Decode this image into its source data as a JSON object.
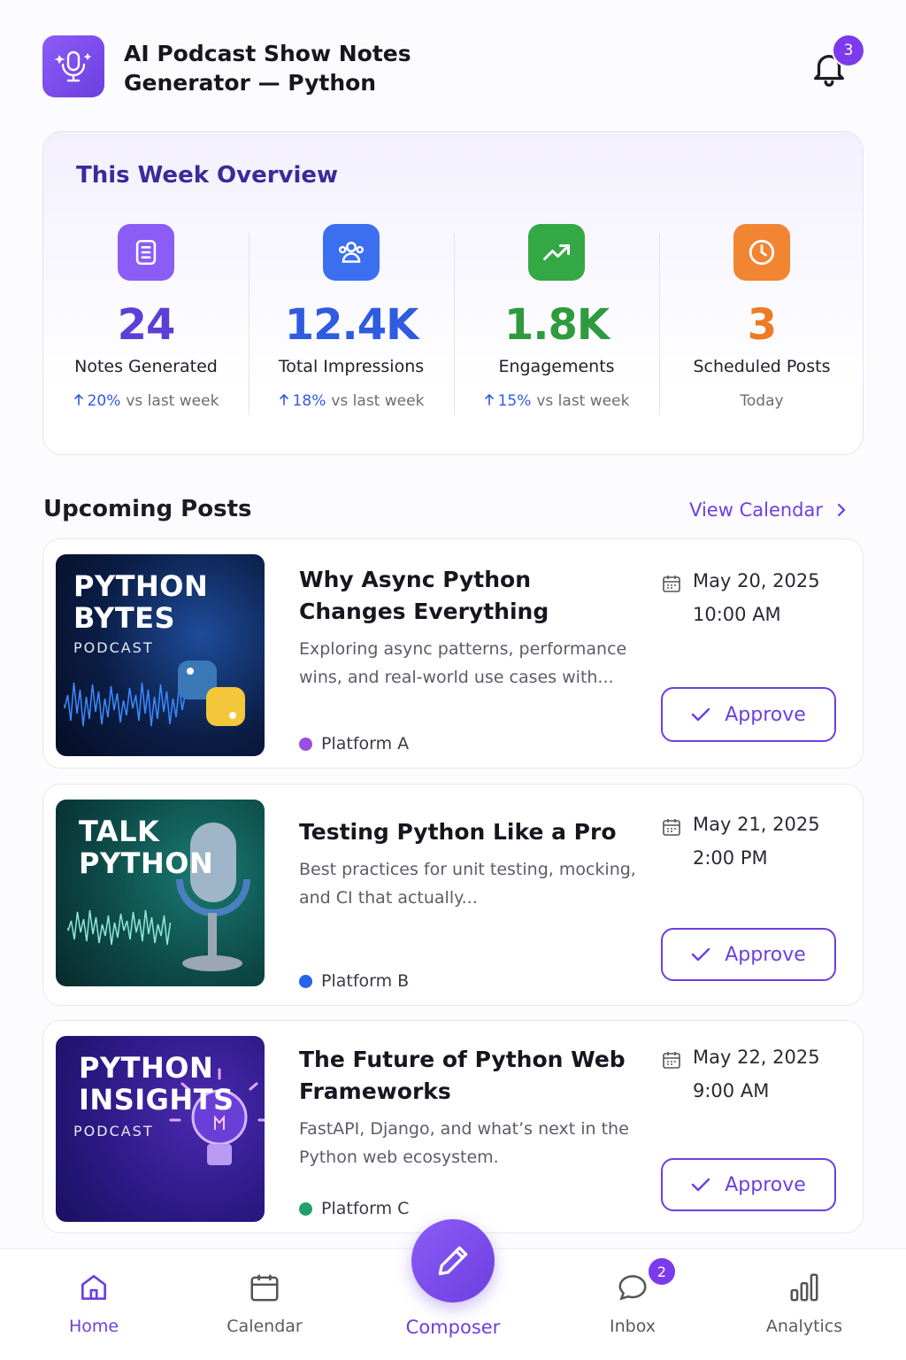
{
  "header": {
    "title": "AI Podcast Show Notes Generator — Python",
    "notification_count": "3"
  },
  "overview": {
    "title": "This Week Overview",
    "stats": [
      {
        "value": "24",
        "label": "Notes Generated",
        "change": "20%",
        "change_text": "vs last week",
        "color": "#5b3fd6",
        "icon_color": "#8b5cf6"
      },
      {
        "value": "12.4K",
        "label": "Total Impressions",
        "change": "18%",
        "change_text": "vs last week",
        "color": "#2f5be0",
        "icon_color": "#3b6ff0"
      },
      {
        "value": "1.8K",
        "label": "Engagements",
        "change": "15%",
        "change_text": "vs last week",
        "color": "#2f9a3e",
        "icon_color": "#34a845"
      },
      {
        "value": "3",
        "label": "Scheduled Posts",
        "note": "Today",
        "color": "#ee7a24",
        "icon_color": "#f28532"
      }
    ]
  },
  "upcoming": {
    "title": "Upcoming Posts",
    "link": "View Calendar",
    "posts": [
      {
        "image_lines": [
          "PYTHON",
          "BYTES"
        ],
        "image_subtitle": "PODCAST",
        "title": "Why Async Python Changes Everything",
        "description": "Exploring async patterns, performance wins, and real-world use cases with...",
        "platform": "Platform A",
        "platform_color": "#9b4fe0",
        "date": "May 20, 2025",
        "time": "10:00 AM",
        "action": "Approve"
      },
      {
        "image_lines": [
          "TALK",
          "PYTHON"
        ],
        "title": "Testing Python Like a Pro",
        "description": "Best practices for unit testing, mocking, and CI that actually...",
        "platform": "Platform B",
        "platform_color": "#2563eb",
        "date": "May 21, 2025",
        "time": "2:00 PM",
        "action": "Approve"
      },
      {
        "image_lines": [
          "PYTHON",
          "INSIGHTS"
        ],
        "image_subtitle": "PODCAST",
        "title": "The Future of Python Web Frameworks",
        "description": "FastAPI, Django, and what’s next in the Python web ecosystem.",
        "platform": "Platform C",
        "platform_color": "#22a06b",
        "date": "May 22, 2025",
        "time": "9:00 AM",
        "action": "Approve"
      }
    ]
  },
  "nav": {
    "items": [
      {
        "label": "Home"
      },
      {
        "label": "Calendar"
      },
      {
        "label": "Composer"
      },
      {
        "label": "Inbox",
        "badge": "2"
      },
      {
        "label": "Analytics"
      }
    ]
  }
}
